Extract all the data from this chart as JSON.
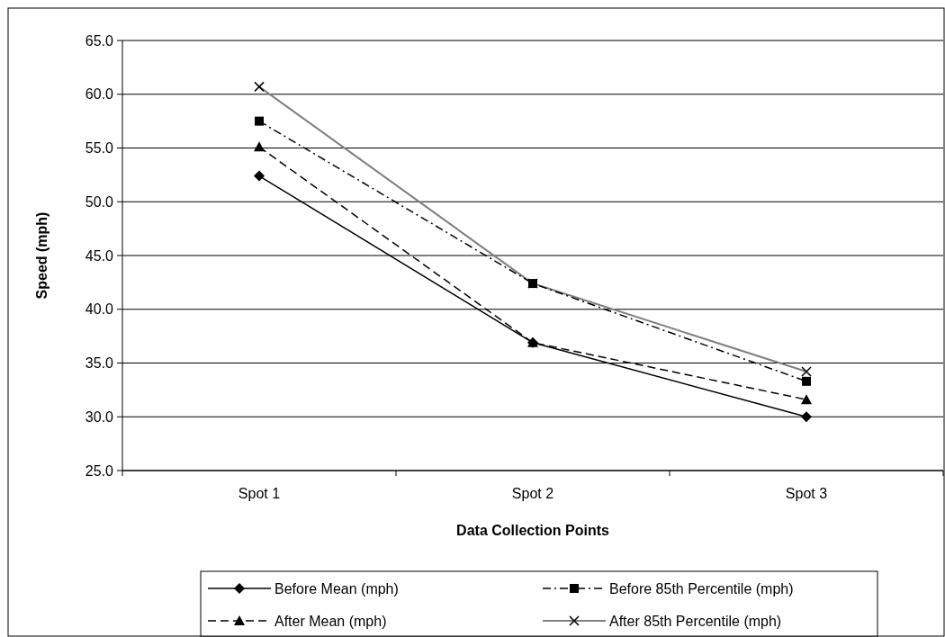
{
  "chart_data": {
    "type": "line",
    "xlabel": "Data Collection Points",
    "ylabel": "Speed (mph)",
    "categories": [
      "Spot 1",
      "Spot 2",
      "Spot 3"
    ],
    "ylim": [
      25,
      65
    ],
    "yticks": [
      {
        "value": 25,
        "label": "25.0"
      },
      {
        "value": 30,
        "label": "30.0"
      },
      {
        "value": 35,
        "label": "35.0"
      },
      {
        "value": 40,
        "label": "40.0"
      },
      {
        "value": 45,
        "label": "45.0"
      },
      {
        "value": 50,
        "label": "50.0"
      },
      {
        "value": 55,
        "label": "55.0"
      },
      {
        "value": 60,
        "label": "60.0"
      },
      {
        "value": 65,
        "label": "65.0"
      }
    ],
    "grid": "y",
    "legend": "bottom",
    "series": [
      {
        "name": "Before Mean (mph)",
        "color": "#000000",
        "marker": "diamond",
        "line_style": "solid",
        "values": [
          52.4,
          36.9,
          30.0
        ]
      },
      {
        "name": "Before 85th Percentile (mph)",
        "color": "#000000",
        "marker": "square",
        "line_style": "dashdot",
        "values": [
          57.5,
          42.4,
          33.3
        ]
      },
      {
        "name": "After Mean (mph)",
        "color": "#000000",
        "marker": "triangle",
        "line_style": "dashed",
        "values": [
          55.1,
          36.9,
          31.6
        ]
      },
      {
        "name": "After 85th Percentile (mph)",
        "color": "#808080",
        "marker": "cross",
        "line_style": "solid",
        "values": [
          60.7,
          42.4,
          34.2
        ]
      }
    ]
  }
}
